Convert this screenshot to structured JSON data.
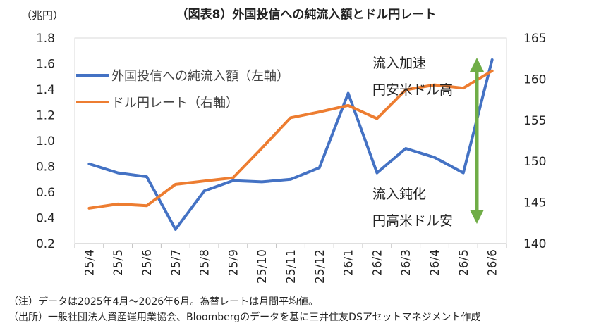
{
  "chart_data": {
    "type": "line",
    "title": "（図表8）外国投信への純流入額とドル円レート",
    "left_axis_unit": "（兆円）",
    "categories": [
      "25/4",
      "25/5",
      "25/6",
      "25/7",
      "25/8",
      "25/9",
      "25/10",
      "25/11",
      "25/12",
      "26/1",
      "26/2",
      "26/3",
      "26/4",
      "26/5",
      "26/6"
    ],
    "left_ylim": [
      0.2,
      1.8
    ],
    "left_ticks": [
      "0.2",
      "0.4",
      "0.6",
      "0.8",
      "1.0",
      "1.2",
      "1.4",
      "1.6",
      "1.8"
    ],
    "right_ylim": [
      140,
      165
    ],
    "right_ticks": [
      "140",
      "145",
      "150",
      "155",
      "160",
      "165"
    ],
    "grid": false,
    "series": [
      {
        "name": "外国投信への純流入額（左軸）",
        "axis": "left",
        "color": "#4472C4",
        "values": [
          0.82,
          0.75,
          0.72,
          0.31,
          0.61,
          0.69,
          0.68,
          0.7,
          0.79,
          1.37,
          0.75,
          0.94,
          0.87,
          0.75,
          1.63
        ]
      },
      {
        "name": "ドル円レート（右軸）",
        "axis": "right",
        "color": "#ED7D31",
        "values": [
          144.3,
          144.8,
          144.6,
          147.2,
          147.6,
          148.0,
          151.6,
          155.3,
          156.0,
          156.8,
          155.2,
          158.7,
          159.3,
          158.9,
          161.0
        ]
      }
    ],
    "annotations": {
      "top_line1": "流入加速",
      "top_line2": "円安米ドル高",
      "bottom_line1": "流入鈍化",
      "bottom_line2": "円高米ドル安",
      "arrow_color": "#70AD47"
    },
    "legend_placement": "top-left"
  },
  "notes": {
    "note1": "（注）データは2025年4月～2026年6月。為替レートは月間平均値。",
    "note2": "（出所）一般社団法人資産運用業協会、Bloombergのデータを基に三井住友DSアセットマネジメント作成"
  }
}
